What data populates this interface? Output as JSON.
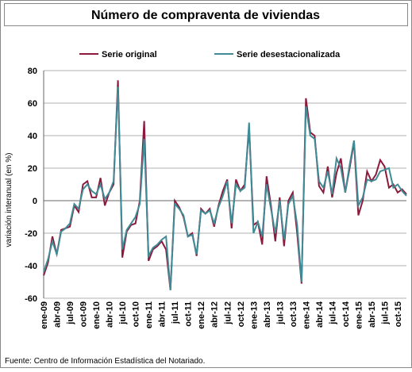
{
  "chart_data": {
    "type": "line",
    "title": "Número de compraventa de viviendas",
    "y_label": "variación interanual (en %)",
    "source": "Fuente: Centro de Información Estadística del Notariado.",
    "categories": [
      "ene-09",
      null,
      null,
      "abr-09",
      null,
      null,
      "jul-09",
      null,
      null,
      "oct-09",
      null,
      null,
      "ene-10",
      null,
      null,
      "abr-10",
      null,
      null,
      "jul-10",
      null,
      null,
      "oct-10",
      null,
      null,
      "ene-11",
      null,
      null,
      "abr-11",
      null,
      null,
      "jul-11",
      null,
      null,
      "oct-11",
      null,
      null,
      "ene-12",
      null,
      null,
      "abr-12",
      null,
      null,
      "jul-12",
      null,
      null,
      "oct-12",
      null,
      null,
      "ene-13",
      null,
      null,
      "abr-13",
      null,
      null,
      "jul-13",
      null,
      null,
      "oct-13",
      null,
      null,
      "ene-14",
      null,
      null,
      "abr-14",
      null,
      null,
      "jul-14",
      null,
      null,
      "oct-14",
      null,
      null,
      "ene-15",
      null,
      null,
      "abr-15",
      null,
      null,
      "jul-15",
      null,
      null,
      "oct-15",
      null,
      null
    ],
    "series": [
      {
        "name": "Serie original",
        "color": "#8b1a3c",
        "values": [
          -46,
          -38,
          -22,
          -33,
          -18,
          -17,
          -16,
          -3,
          -7,
          10,
          12,
          2,
          2,
          14,
          -3,
          5,
          10,
          74,
          -35,
          -19,
          -15,
          -14,
          0,
          49,
          -37,
          -30,
          -28,
          -25,
          -30,
          -55,
          0,
          -4,
          -10,
          -22,
          -20,
          -34,
          -5,
          -8,
          -5,
          -16,
          -3,
          6,
          13,
          -17,
          13,
          6,
          10,
          45,
          -15,
          -13,
          -27,
          15,
          -3,
          -25,
          2,
          -28,
          0,
          5,
          -20,
          -51,
          63,
          42,
          40,
          9,
          5,
          21,
          2,
          17,
          26,
          5,
          20,
          36,
          -9,
          0,
          18,
          12,
          16,
          25,
          21,
          8,
          10,
          5,
          7,
          4
        ]
      },
      {
        "name": "Serie desestacionalizada",
        "color": "#3f8c96",
        "values": [
          -44,
          -36,
          -25,
          -33,
          -19,
          -17,
          -14,
          -2,
          -5,
          7,
          10,
          6,
          4,
          10,
          1,
          5,
          12,
          70,
          -30,
          -18,
          -14,
          -10,
          -2,
          38,
          -34,
          -29,
          -27,
          -24,
          -22,
          -55,
          -2,
          -5,
          -9,
          -22,
          -21,
          -33,
          -6,
          -8,
          -6,
          -14,
          -4,
          3,
          12,
          -14,
          10,
          6,
          8,
          48,
          -20,
          -13,
          -22,
          10,
          -5,
          -20,
          0,
          -24,
          -2,
          3,
          -15,
          -50,
          58,
          40,
          38,
          12,
          8,
          18,
          4,
          26,
          20,
          5,
          22,
          37,
          -3,
          2,
          13,
          12,
          13,
          18,
          19,
          20,
          8,
          10,
          6,
          3
        ]
      }
    ],
    "ylim": [
      -60,
      80
    ],
    "yticks": [
      -60,
      -40,
      -20,
      0,
      20,
      40,
      60,
      80
    ],
    "grid": true
  }
}
